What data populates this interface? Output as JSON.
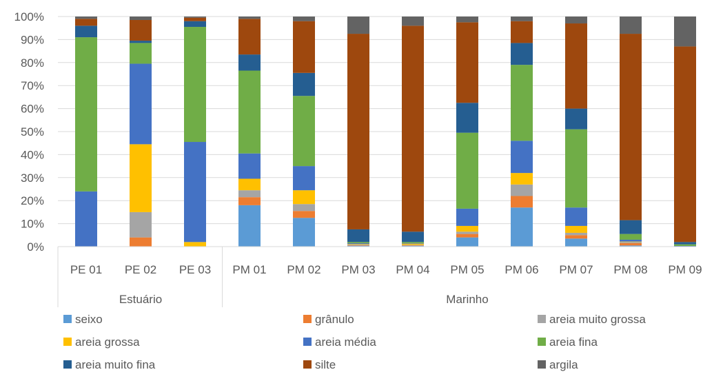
{
  "chart_data": {
    "type": "bar",
    "stacked": "percent",
    "categories": [
      "PE 01",
      "PE 02",
      "PE 03",
      "PM 01",
      "PM 02",
      "PM 03",
      "PM 04",
      "PM 05",
      "PM 06",
      "PM 07",
      "PM 08",
      "PM 09"
    ],
    "groups": [
      {
        "label": "Estuário",
        "categories": [
          "PE 01",
          "PE 02",
          "PE 03"
        ]
      },
      {
        "label": "Marinho",
        "categories": [
          "PM 01",
          "PM 02",
          "PM 03",
          "PM 04",
          "PM 05",
          "PM 06",
          "PM 07",
          "PM 08",
          "PM 09"
        ]
      }
    ],
    "ylim": [
      0,
      100
    ],
    "yticks": [
      "0%",
      "10%",
      "20%",
      "30%",
      "40%",
      "50%",
      "60%",
      "70%",
      "80%",
      "90%",
      "100%"
    ],
    "grid": true,
    "legend_position": "bottom",
    "series": [
      {
        "name": "seixo",
        "color": "#5B9BD5",
        "values": [
          0,
          0,
          0,
          18,
          12.5,
          0.3,
          0.3,
          4,
          17,
          3.5,
          0.5,
          0
        ]
      },
      {
        "name": "grânulo",
        "color": "#ED7D31",
        "values": [
          0,
          4,
          0,
          3.5,
          3,
          0.2,
          0.2,
          1.5,
          5,
          1.5,
          1,
          0
        ]
      },
      {
        "name": "areia muito grossa",
        "color": "#A5A5A5",
        "values": [
          0,
          11,
          0,
          3,
          3,
          0.5,
          0.3,
          1,
          5,
          1,
          0.5,
          0
        ]
      },
      {
        "name": "areia grossa",
        "color": "#FFC000",
        "values": [
          0,
          29.5,
          2,
          5,
          6,
          0.2,
          0.5,
          2.5,
          5,
          3,
          0.2,
          0
        ]
      },
      {
        "name": "areia média",
        "color": "#4472C4",
        "values": [
          24,
          35,
          43.5,
          11,
          10.5,
          0.3,
          0.2,
          7.5,
          14,
          8,
          0.8,
          0.3
        ]
      },
      {
        "name": "areia fina",
        "color": "#70AD47",
        "values": [
          67,
          9,
          50,
          36,
          30.5,
          0.5,
          0.5,
          33,
          33,
          34,
          2.5,
          0.7
        ]
      },
      {
        "name": "areia muito fina",
        "color": "#255E91",
        "values": [
          5,
          1,
          2.5,
          7,
          10,
          5.5,
          4.5,
          13,
          9.5,
          9,
          6,
          1
        ]
      },
      {
        "name": "silte",
        "color": "#9E480E",
        "values": [
          3,
          9,
          1.5,
          15.5,
          22.5,
          85,
          89.5,
          35,
          9.5,
          37,
          81,
          85
        ]
      },
      {
        "name": "argila",
        "color": "#636363",
        "values": [
          1,
          1.5,
          0.5,
          1,
          2,
          7.5,
          4,
          2.5,
          2,
          3,
          7.5,
          13
        ]
      }
    ]
  }
}
